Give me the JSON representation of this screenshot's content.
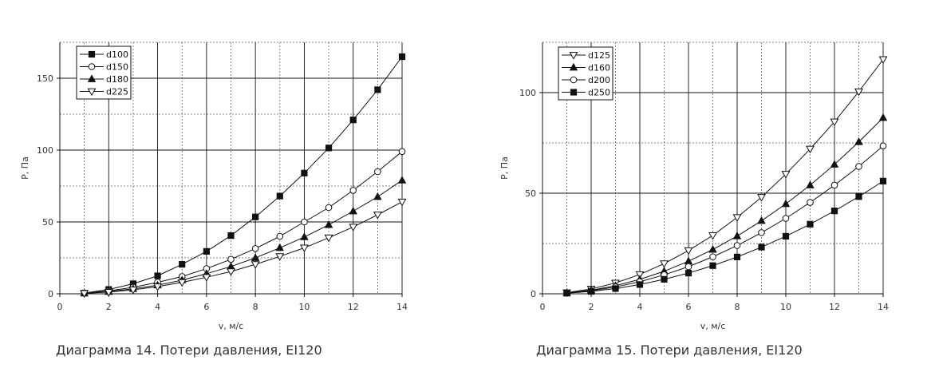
{
  "chart_data": [
    {
      "type": "line",
      "caption": "Диаграмма 14. Потери давления, EI120",
      "xlabel": "v, м/с",
      "ylabel": "P, Па",
      "xlim": [
        0,
        14
      ],
      "ylim": [
        0,
        175
      ],
      "xticks": [
        0,
        2,
        4,
        6,
        8,
        10,
        12,
        14
      ],
      "yticks": [
        0,
        50,
        100,
        150
      ],
      "grid": true,
      "legend_position": "top-left",
      "x": [
        1,
        2,
        3,
        4,
        5,
        6,
        7,
        8,
        9,
        10,
        11,
        12,
        13,
        14
      ],
      "series": [
        {
          "name": "d100",
          "marker": "square-filled",
          "values": [
            0.5,
            3,
            7,
            12.5,
            20.5,
            29.5,
            40.5,
            53.5,
            68,
            84,
            101.5,
            121,
            142,
            165
          ]
        },
        {
          "name": "d150",
          "marker": "circle-open",
          "values": [
            0.5,
            2,
            4.5,
            8,
            12,
            17.5,
            24,
            31.5,
            40,
            50,
            60,
            72,
            85,
            99
          ]
        },
        {
          "name": "d180",
          "marker": "triangle-up-filled",
          "values": [
            0.4,
            1.5,
            3.5,
            6,
            9.5,
            14,
            19,
            25,
            32,
            39.5,
            48,
            57.5,
            67.5,
            79
          ]
        },
        {
          "name": "d225",
          "marker": "triangle-down-open",
          "values": [
            0.3,
            1.2,
            2.8,
            5,
            8,
            11.5,
            15.5,
            20.5,
            26,
            32,
            39,
            46.5,
            55,
            64
          ]
        }
      ]
    },
    {
      "type": "line",
      "caption": "Диаграмма 15. Потери давления, EI120",
      "xlabel": "v, м/с",
      "ylabel": "P, Па",
      "xlim": [
        0,
        14
      ],
      "ylim": [
        0,
        125
      ],
      "xticks": [
        0,
        2,
        4,
        6,
        8,
        10,
        12,
        14
      ],
      "yticks": [
        0,
        50,
        100
      ],
      "grid": true,
      "legend_position": "top-left",
      "x": [
        1,
        2,
        3,
        4,
        5,
        6,
        7,
        8,
        9,
        10,
        11,
        12,
        13,
        14
      ],
      "series": [
        {
          "name": "d125",
          "marker": "triangle-down-open",
          "values": [
            0.6,
            2.4,
            5.4,
            9.6,
            15,
            21.5,
            29,
            38,
            48,
            59.5,
            72,
            85.5,
            100.5,
            116.5
          ]
        },
        {
          "name": "d160",
          "marker": "triangle-up-filled",
          "values": [
            0.5,
            1.8,
            4,
            7.2,
            11.2,
            16.2,
            22,
            28.7,
            36.3,
            44.7,
            54,
            64.3,
            75.5,
            87.5
          ]
        },
        {
          "name": "d200",
          "marker": "circle-open",
          "values": [
            0.4,
            1.5,
            3.4,
            6,
            9.4,
            13.5,
            18.4,
            24,
            30.4,
            37.5,
            45.4,
            54,
            63.3,
            73.5
          ]
        },
        {
          "name": "d250",
          "marker": "square-filled",
          "values": [
            0.3,
            1.2,
            2.6,
            4.6,
            7.2,
            10.3,
            14,
            18.3,
            23.2,
            28.6,
            34.6,
            41.2,
            48.3,
            56
          ]
        }
      ]
    }
  ]
}
